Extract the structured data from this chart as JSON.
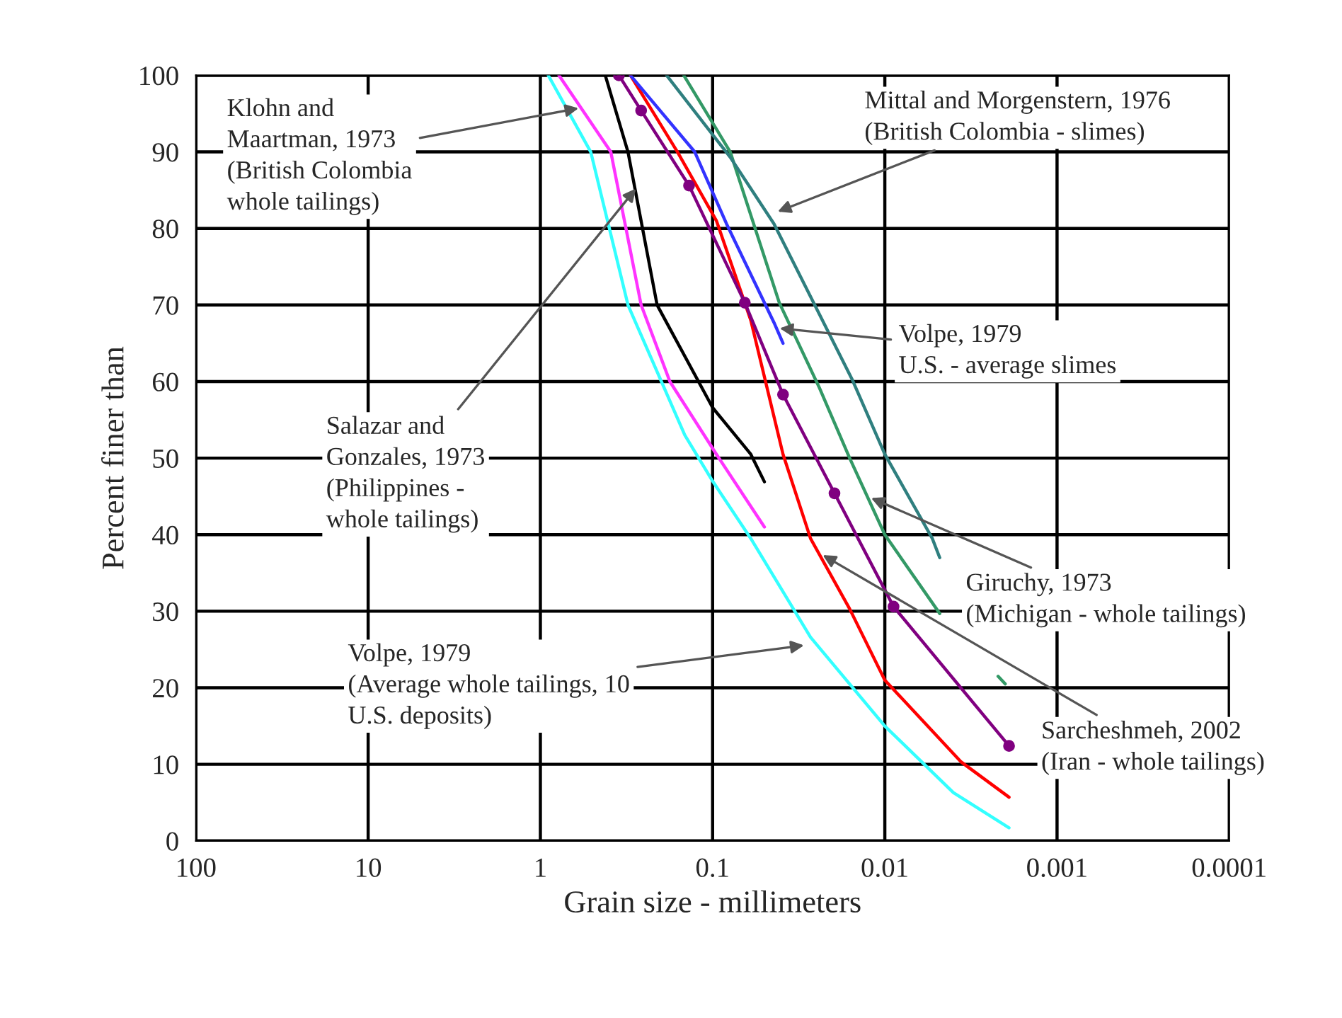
{
  "chart_data": {
    "type": "line",
    "xlabel": "Grain size - millimeters",
    "ylabel": "Percent finer than",
    "log": "x",
    "xlim": [
      100,
      0.0001
    ],
    "xticks": [
      100,
      10,
      1,
      0.1,
      0.01,
      0.001,
      0.0001
    ],
    "ylim": [
      0,
      100
    ],
    "yticks": [
      0,
      10,
      20,
      30,
      40,
      50,
      60,
      70,
      80,
      90,
      100
    ],
    "grid": true,
    "series": [
      {
        "color": "#33ffff",
        "marker": "none",
        "x": [
          0.9,
          0.51,
          0.31,
          0.145,
          0.1,
          0.06,
          0.027,
          0.01,
          0.004,
          0.0019
        ],
        "values": [
          100,
          90,
          70,
          53,
          47,
          39.5,
          26.6,
          15,
          6.3,
          1.7
        ]
      },
      {
        "color": "#ff33ff",
        "marker": "none",
        "x": [
          0.78,
          0.39,
          0.26,
          0.177,
          0.095,
          0.05
        ],
        "values": [
          100,
          90,
          70,
          60,
          50.5,
          41
        ]
      },
      {
        "color": "#000000",
        "marker": "none",
        "x": [
          0.42,
          0.31,
          0.21,
          0.1,
          0.06,
          0.05
        ],
        "values": [
          100,
          90,
          70,
          56.6,
          50.5,
          46.9
        ]
      },
      {
        "color": "#ff0000",
        "marker": "none",
        "x": [
          0.3,
          0.16,
          0.095,
          0.06,
          0.039,
          0.027,
          0.016,
          0.01,
          0.0036,
          0.0019
        ],
        "values": [
          100,
          90,
          81,
          68,
          50.5,
          39.5,
          30.3,
          21,
          10.3,
          5.7
        ]
      },
      {
        "color": "#3333ff",
        "marker": "none",
        "x": [
          0.3,
          0.127,
          0.083,
          0.044,
          0.039
        ],
        "values": [
          100,
          90,
          80.6,
          67.7,
          65
        ]
      },
      {
        "color": "#800080",
        "marker": "circle",
        "x": [
          0.35,
          0.26,
          0.137,
          0.065,
          0.039,
          0.0196,
          0.0089,
          0.0019
        ],
        "values": [
          100,
          95.4,
          85.6,
          70.3,
          58.3,
          45.4,
          30.6,
          12.4
        ]
      },
      {
        "color": "#339966",
        "marker": "none",
        "x": [
          0.147,
          0.079,
          0.041,
          0.024,
          0.016,
          0.01,
          0.0048,
          0.0035,
          0.0022,
          0.002
        ],
        "values": [
          100,
          90,
          70.3,
          59.2,
          50,
          40,
          29.7,
          null,
          21.5,
          20.5
        ]
      },
      {
        "color": "#2f7f7f",
        "marker": "none",
        "x": [
          0.185,
          0.079,
          0.044,
          0.0155,
          0.01,
          0.0053,
          0.0048
        ],
        "values": [
          100,
          89.3,
          80.6,
          60.3,
          50.5,
          39.5,
          37
        ]
      }
    ],
    "annotations": [
      {
        "text": "Klohn and\nMaartman, 1973\n(British Colombia\nwhole tailings)",
        "x": 0.57,
        "y": 95.8
      },
      {
        "text": "Mittal and Morgenstern, 1976\n(British Colombia - slimes)",
        "x": 0.044,
        "y": 82
      },
      {
        "text": "Volpe, 1979\nU.S. - average slimes",
        "x": 0.043,
        "y": 67
      },
      {
        "text": "Salazar and\nGonzales, 1973\n(Philippines -\nwhole tailings)",
        "x": 0.27,
        "y": 85.6
      },
      {
        "text": "Giruchy, 1973\n(Michigan - whole tailings)",
        "x": 0.0126,
        "y": 45
      },
      {
        "text": "Volpe, 1979\n(Average whole tailings, 10\nU.S. deposits)",
        "x": 0.028,
        "y": 25.6
      },
      {
        "text": "Sarcheshmeh, 2002\n(Iran - whole tailings)",
        "x": 0.024,
        "y": 37.6
      }
    ]
  }
}
